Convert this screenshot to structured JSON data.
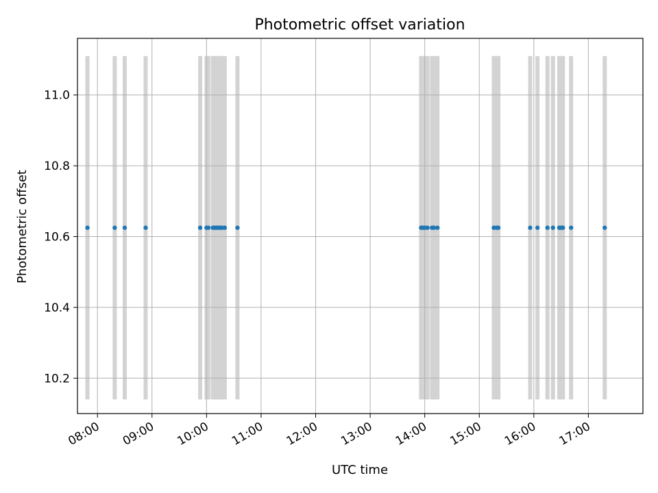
{
  "chart_data": {
    "type": "scatter",
    "title": "Photometric offset variation",
    "xlabel": "UTC time",
    "ylabel": "Photometric offset",
    "xlim": [
      "07:38",
      "18:00"
    ],
    "ylim": [
      10.1,
      11.16
    ],
    "x_ticks": [
      "08:00",
      "09:00",
      "10:00",
      "11:00",
      "12:00",
      "13:00",
      "14:00",
      "15:00",
      "16:00",
      "17:00"
    ],
    "y_ticks": [
      10.2,
      10.4,
      10.6,
      10.8,
      11.0
    ],
    "grid": true,
    "colors": {
      "points": "#1f77b4",
      "bands": "#d3d3d3",
      "grid": "#b0b0b0"
    },
    "band_range": [
      10.14,
      11.11
    ],
    "series": [
      {
        "x": [
          "07:49",
          "08:19",
          "08:30",
          "08:53",
          "09:53",
          "10:00",
          "10:02",
          "10:07",
          "10:09",
          "10:11",
          "10:13",
          "10:15",
          "10:17",
          "10:20",
          "10:34",
          "13:56",
          "13:58",
          "14:00",
          "14:03",
          "14:08",
          "14:10",
          "14:14",
          "15:16",
          "15:19",
          "15:21",
          "15:56",
          "16:04",
          "16:15",
          "16:21",
          "16:28",
          "16:30",
          "16:32",
          "16:41",
          "17:18"
        ],
        "y": [
          10.625,
          10.625,
          10.625,
          10.625,
          10.625,
          10.625,
          10.625,
          10.625,
          10.625,
          10.625,
          10.625,
          10.625,
          10.625,
          10.625,
          10.625,
          10.625,
          10.625,
          10.625,
          10.625,
          10.625,
          10.625,
          10.625,
          10.625,
          10.625,
          10.625,
          10.625,
          10.625,
          10.625,
          10.625,
          10.625,
          10.625,
          10.625,
          10.625,
          10.625
        ]
      }
    ]
  }
}
